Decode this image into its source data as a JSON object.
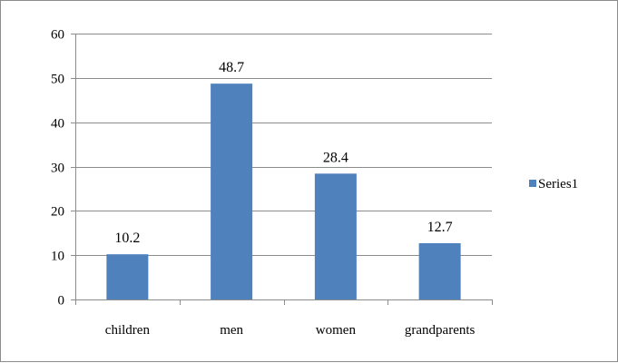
{
  "chart_data": {
    "type": "bar",
    "categories": [
      "children",
      "men",
      "women",
      "grandparents"
    ],
    "series": [
      {
        "name": "Series1",
        "values": [
          10.2,
          48.7,
          28.4,
          12.7
        ],
        "color": "#4f81bd"
      }
    ],
    "data_labels": [
      "10.2",
      "48.7",
      "28.4",
      "12.7"
    ],
    "y_ticks": [
      0,
      10,
      20,
      30,
      40,
      50,
      60
    ],
    "ylim": [
      0,
      60
    ],
    "grid": true,
    "legend": {
      "position": "right",
      "entries": [
        "Series1"
      ]
    }
  }
}
